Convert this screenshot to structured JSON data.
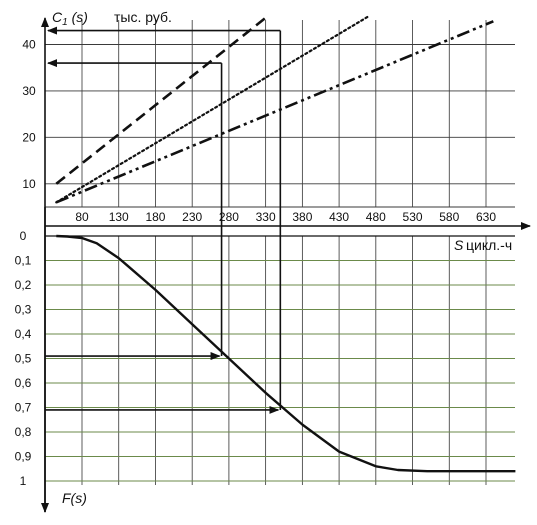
{
  "chart_data": [
    {
      "type": "line",
      "title": "",
      "ylabel_var": "C",
      "ylabel_sub": "1",
      "ylabel_arg": "(s)",
      "ylabel_unit": "тыс. руб.",
      "xlabel_var": "S",
      "xlabel_unit": "цикл.-ч",
      "x_ticks": [
        "80",
        "130",
        "180",
        "230",
        "280",
        "330",
        "380",
        "430",
        "480",
        "530",
        "580",
        "630"
      ],
      "y_ticks": [
        "10",
        "20",
        "30",
        "40"
      ],
      "xlim": [
        45,
        670
      ],
      "ylim": [
        5,
        45
      ],
      "grid": true,
      "series": [
        {
          "style": "dashed",
          "x": [
            45,
            340
          ],
          "y": [
            10,
            47
          ]
        },
        {
          "style": "dotted",
          "x": [
            45,
            480
          ],
          "y": [
            6,
            47
          ]
        },
        {
          "style": "dash-dot-dot",
          "x": [
            45,
            640
          ],
          "y": [
            6,
            45
          ]
        }
      ],
      "markers": [
        {
          "from_x": 350,
          "to_y": 43
        },
        {
          "from_x": 270,
          "to_y": 36
        }
      ]
    },
    {
      "type": "line",
      "ylabel": "F(s)",
      "y_ticks": [
        "0",
        "0,1",
        "0,2",
        "0,3",
        "0,4",
        "0,5",
        "0,6",
        "0,7",
        "0,8",
        "0,9",
        "1"
      ],
      "ylim": [
        0,
        1
      ],
      "xlim": [
        45,
        670
      ],
      "grid": true,
      "curve": {
        "x": [
          45,
          60,
          80,
          100,
          130,
          180,
          230,
          280,
          330,
          380,
          430,
          480,
          510,
          550,
          600,
          670
        ],
        "y": [
          0,
          0.002,
          0.008,
          0.03,
          0.09,
          0.22,
          0.36,
          0.5,
          0.64,
          0.77,
          0.88,
          0.94,
          0.955,
          0.96,
          0.96,
          0.96
        ]
      },
      "markers": [
        {
          "level": 0.49,
          "to_x": 270
        },
        {
          "level": 0.71,
          "to_x": 350
        }
      ]
    }
  ]
}
